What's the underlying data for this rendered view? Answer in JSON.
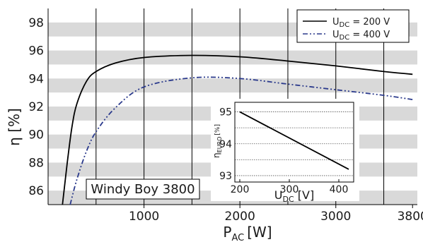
{
  "chart_data": [
    {
      "type": "line",
      "title": "",
      "xlabel_main": "P",
      "xlabel_sub": "AC",
      "xlabel_unit": "[W]",
      "ylabel": "η [%]",
      "xlim": [
        0,
        3850
      ],
      "ylim": [
        85,
        99
      ],
      "x_ticks": [
        1000,
        2000,
        3000,
        3800
      ],
      "y_ticks": [
        86,
        88,
        90,
        92,
        94,
        96,
        98
      ],
      "grid": "horizontal bands + vertical lines",
      "legend_position": "top-right",
      "annotation": "Windy Boy 3800",
      "series": [
        {
          "name_main": "U",
          "name_sub": "DC",
          "name_rest": " = 200 V",
          "style": "solid",
          "color": "#000000",
          "x": [
            150,
            200,
            250,
            300,
            400,
            500,
            700,
            1000,
            1500,
            2000,
            2500,
            3000,
            3500,
            3800
          ],
          "y": [
            85.0,
            88.0,
            90.6,
            92.2,
            93.8,
            94.5,
            95.1,
            95.5,
            95.65,
            95.55,
            95.25,
            94.9,
            94.5,
            94.3
          ]
        },
        {
          "name_main": "U",
          "name_sub": "DC",
          "name_rest": " = 400 V",
          "style": "dash-dot-dot",
          "color": "#2b3a8c",
          "x": [
            230,
            300,
            400,
            500,
            700,
            1000,
            1500,
            2000,
            2500,
            3000,
            3500,
            3800
          ],
          "y": [
            85.0,
            86.8,
            88.8,
            90.2,
            91.9,
            93.4,
            94.05,
            94.0,
            93.6,
            93.2,
            92.8,
            92.5
          ]
        }
      ]
    },
    {
      "type": "line",
      "title": "",
      "xlabel_main": "U",
      "xlabel_sub": "DC",
      "xlabel_unit": " [V]",
      "ylabel_main": "η",
      "ylabel_sub": "EURO",
      "ylabel_unit": "[%]",
      "xlim": [
        190,
        430
      ],
      "ylim": [
        92.8,
        95.3
      ],
      "x_ticks": [
        200,
        300,
        400
      ],
      "y_ticks": [
        93,
        94,
        95
      ],
      "grid": "horizontal dotted lines",
      "series": [
        {
          "x": [
            200,
            420
          ],
          "y": [
            95.0,
            93.2
          ],
          "style": "solid",
          "color": "#000000"
        }
      ]
    }
  ]
}
